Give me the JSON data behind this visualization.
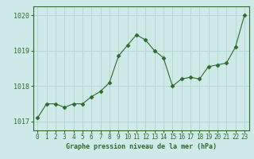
{
  "x": [
    0,
    1,
    2,
    3,
    4,
    5,
    6,
    7,
    8,
    9,
    10,
    11,
    12,
    13,
    14,
    15,
    16,
    17,
    18,
    19,
    20,
    21,
    22,
    23
  ],
  "y": [
    1017.1,
    1017.5,
    1017.5,
    1017.4,
    1017.5,
    1017.5,
    1017.7,
    1017.85,
    1018.1,
    1018.85,
    1019.15,
    1019.45,
    1019.3,
    1019.0,
    1018.8,
    1018.0,
    1018.2,
    1018.25,
    1018.2,
    1018.55,
    1018.6,
    1018.65,
    1019.1,
    1020.0
  ],
  "line_color": "#2d6a2d",
  "marker": "D",
  "marker_size": 2.5,
  "bg_color": "#cfe9e9",
  "grid_color": "#b0d4cc",
  "title": "Graphe pression niveau de la mer (hPa)",
  "ylim": [
    1016.75,
    1020.25
  ],
  "yticks": [
    1017,
    1018,
    1019,
    1020
  ],
  "xticks": [
    0,
    1,
    2,
    3,
    4,
    5,
    6,
    7,
    8,
    9,
    10,
    11,
    12,
    13,
    14,
    15,
    16,
    17,
    18,
    19,
    20,
    21,
    22,
    23
  ],
  "tick_color": "#2d6a2d",
  "spine_color": "#2d6a2d",
  "title_fontsize": 6.0,
  "tick_fontsize": 5.5
}
